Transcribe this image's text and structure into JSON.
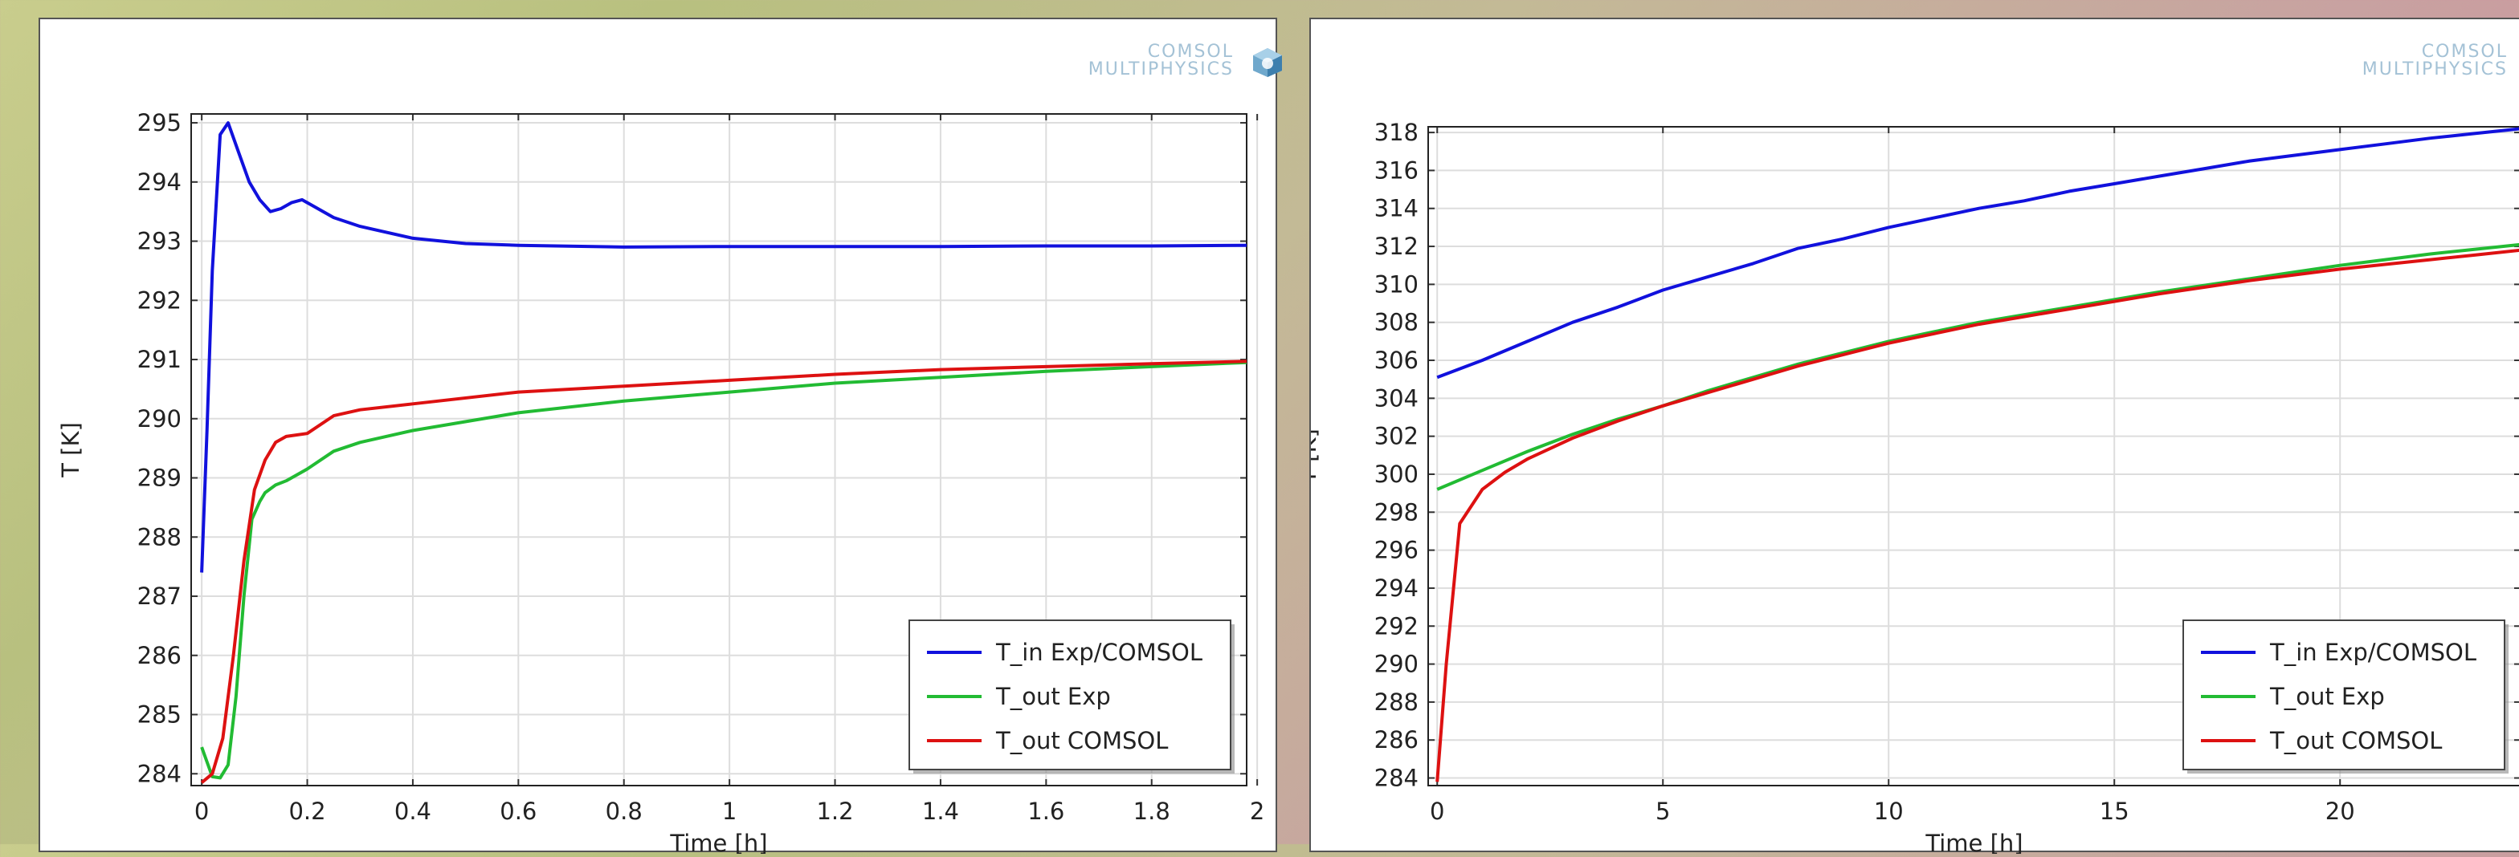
{
  "chart_data": [
    {
      "type": "line",
      "logo_line1": "COMSOL",
      "logo_line2": "MULTIPHYSICS",
      "xlabel": "Time [h]",
      "ylabel": "T [K]",
      "xlim": [
        -0.02,
        1.98
      ],
      "ylim": [
        283.8,
        295.15
      ],
      "xticks": [
        0,
        0.2,
        0.4,
        0.6,
        0.8,
        1,
        1.2,
        1.4,
        1.6,
        1.8,
        2
      ],
      "xtick_labels": [
        "0",
        "0.2",
        "0.4",
        "0.6",
        "0.8",
        "1",
        "1.2",
        "1.4",
        "1.6",
        "1.8",
        "2"
      ],
      "yticks": [
        284,
        285,
        286,
        287,
        288,
        289,
        290,
        291,
        292,
        293,
        294,
        295
      ],
      "ytick_labels": [
        "284",
        "285",
        "286",
        "287",
        "288",
        "289",
        "290",
        "291",
        "292",
        "293",
        "294",
        "295"
      ],
      "grid": true,
      "legend_position": "bottom-right",
      "series": [
        {
          "name": "T_in Exp/COMSOL",
          "color": "#1111dd",
          "x": [
            0,
            0.01,
            0.02,
            0.035,
            0.05,
            0.07,
            0.09,
            0.11,
            0.13,
            0.15,
            0.17,
            0.19,
            0.21,
            0.25,
            0.3,
            0.4,
            0.5,
            0.6,
            0.8,
            1.0,
            1.2,
            1.4,
            1.6,
            1.8,
            1.98
          ],
          "y": [
            287.4,
            289.8,
            292.5,
            294.8,
            295.0,
            294.5,
            294.0,
            293.7,
            293.5,
            293.55,
            293.65,
            293.7,
            293.6,
            293.4,
            293.25,
            293.05,
            292.96,
            292.93,
            292.9,
            292.91,
            292.91,
            292.91,
            292.92,
            292.92,
            292.93
          ]
        },
        {
          "name": "T_out Exp",
          "color": "#22bb33",
          "x": [
            0,
            0.01,
            0.02,
            0.035,
            0.05,
            0.065,
            0.08,
            0.095,
            0.11,
            0.12,
            0.14,
            0.16,
            0.2,
            0.25,
            0.3,
            0.4,
            0.6,
            0.8,
            1.0,
            1.2,
            1.4,
            1.6,
            1.8,
            1.98
          ],
          "y": [
            284.45,
            284.2,
            283.95,
            283.93,
            284.15,
            285.3,
            287.0,
            288.3,
            288.6,
            288.75,
            288.88,
            288.95,
            289.15,
            289.45,
            289.6,
            289.8,
            290.1,
            290.3,
            290.45,
            290.6,
            290.7,
            290.8,
            290.88,
            290.95
          ]
        },
        {
          "name": "T_out COMSOL",
          "color": "#dd1111",
          "x": [
            0,
            0.02,
            0.04,
            0.06,
            0.08,
            0.1,
            0.12,
            0.14,
            0.16,
            0.2,
            0.25,
            0.3,
            0.4,
            0.6,
            0.8,
            1.0,
            1.2,
            1.4,
            1.6,
            1.8,
            1.98
          ],
          "y": [
            283.85,
            284.0,
            284.6,
            286.0,
            287.6,
            288.8,
            289.3,
            289.6,
            289.7,
            289.75,
            290.05,
            290.15,
            290.25,
            290.45,
            290.55,
            290.65,
            290.75,
            290.83,
            290.88,
            290.93,
            290.97
          ]
        }
      ]
    },
    {
      "type": "line",
      "logo_line1": "COMSOL",
      "logo_line2": "MULTIPHYSICS",
      "xlabel": "Time [h]",
      "ylabel": "T [K]",
      "xlim": [
        -0.2,
        24
      ],
      "ylim": [
        283.6,
        318.3
      ],
      "xticks": [
        0,
        5,
        10,
        15,
        20
      ],
      "xtick_labels": [
        "0",
        "5",
        "10",
        "15",
        "20"
      ],
      "yticks": [
        284,
        286,
        288,
        290,
        292,
        294,
        296,
        298,
        300,
        302,
        304,
        306,
        308,
        310,
        312,
        314,
        316,
        318
      ],
      "ytick_labels": [
        "284",
        "286",
        "288",
        "290",
        "292",
        "294",
        "296",
        "298",
        "300",
        "302",
        "304",
        "306",
        "308",
        "310",
        "312",
        "314",
        "316",
        "318"
      ],
      "grid": true,
      "legend_position": "bottom-right",
      "series": [
        {
          "name": "T_in Exp/COMSOL",
          "color": "#1111dd",
          "x": [
            0,
            1,
            2,
            3,
            4,
            5,
            6,
            7,
            8,
            9,
            10,
            11,
            12,
            13,
            14,
            15,
            16,
            17,
            18,
            19,
            20,
            21,
            22,
            23,
            24
          ],
          "y": [
            305.1,
            306.0,
            307.0,
            308.0,
            308.8,
            309.7,
            310.4,
            311.1,
            311.9,
            312.4,
            313.0,
            313.5,
            314.0,
            314.4,
            314.9,
            315.3,
            315.7,
            316.1,
            316.5,
            316.8,
            317.1,
            317.4,
            317.7,
            317.95,
            318.2
          ]
        },
        {
          "name": "T_out Exp",
          "color": "#22bb33",
          "x": [
            0,
            1,
            2,
            3,
            4,
            5,
            6,
            7,
            8,
            9,
            10,
            11,
            12,
            13,
            14,
            15,
            16,
            17,
            18,
            19,
            20,
            21,
            22,
            23,
            24
          ],
          "y": [
            299.2,
            300.2,
            301.2,
            302.1,
            302.9,
            303.6,
            304.4,
            305.1,
            305.8,
            306.4,
            307.0,
            307.5,
            308.0,
            308.4,
            308.8,
            309.2,
            309.6,
            309.95,
            310.3,
            310.65,
            311.0,
            311.3,
            311.6,
            311.85,
            312.1
          ]
        },
        {
          "name": "T_out COMSOL",
          "color": "#dd1111",
          "x": [
            0,
            0.2,
            0.5,
            1,
            1.5,
            2,
            3,
            4,
            5,
            6,
            7,
            8,
            9,
            10,
            11,
            12,
            13,
            14,
            15,
            16,
            17,
            18,
            19,
            20,
            21,
            22,
            23,
            24
          ],
          "y": [
            283.8,
            290.0,
            297.4,
            299.2,
            300.1,
            300.8,
            301.9,
            302.8,
            303.6,
            304.3,
            305.0,
            305.7,
            306.3,
            306.9,
            307.4,
            307.9,
            308.3,
            308.7,
            309.1,
            309.5,
            309.85,
            310.2,
            310.5,
            310.8,
            311.05,
            311.3,
            311.55,
            311.8
          ]
        }
      ]
    }
  ]
}
